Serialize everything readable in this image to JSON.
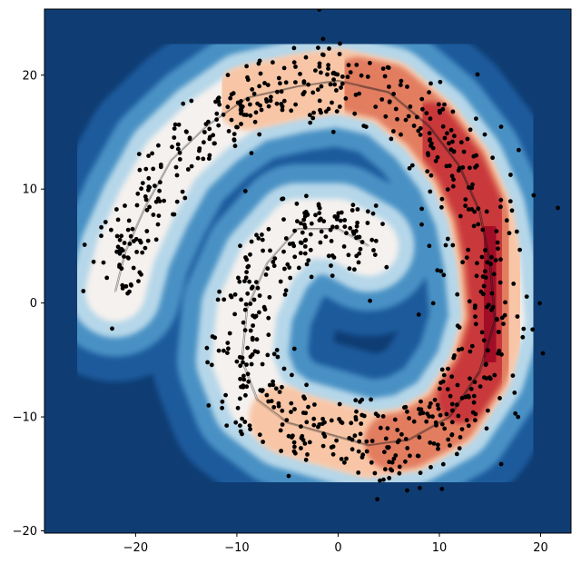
{
  "chart_data": {
    "type": "scatter",
    "subtype": "filled-contour-with-scatter-overlay",
    "title": "",
    "xlabel": "",
    "ylabel": "",
    "xlim": [
      -29,
      23
    ],
    "ylim": [
      -20.2,
      25.8
    ],
    "xticks": [
      -20,
      -10,
      0,
      10,
      20
    ],
    "yticks": [
      -20,
      -10,
      0,
      10,
      20
    ],
    "grid": false,
    "legend": "none",
    "colormap": "RdBu_r",
    "colors": {
      "background": "#0f3d73",
      "level_1": "#1a5a9c",
      "level_2": "#4a91c4",
      "level_3": "#b6d7e9",
      "level_4": "#f5f1ee",
      "level_5": "#f8c6a6",
      "level_6": "#e27d61",
      "level_7": "#c9383b",
      "level_8": "#a10f27",
      "points": "#000000",
      "contour_lines": "#1c1c1c"
    },
    "spiral": {
      "description_of_density_path": "density peaks along a spiral arm",
      "centerline": [
        [
          3,
          5
        ],
        [
          0,
          6.5
        ],
        [
          -4,
          6.5
        ],
        [
          -7,
          3.5
        ],
        [
          -9,
          -0.5
        ],
        [
          -9.5,
          -5
        ],
        [
          -8,
          -8.5
        ],
        [
          -5,
          -10.5
        ],
        [
          -1,
          -11.5
        ],
        [
          3,
          -12.5
        ],
        [
          7,
          -12
        ],
        [
          11,
          -10
        ],
        [
          14,
          -6
        ],
        [
          15.5,
          -1.5
        ],
        [
          15,
          3.5
        ],
        [
          14,
          8
        ],
        [
          12,
          12
        ],
        [
          9,
          15.5
        ],
        [
          5,
          18.5
        ],
        [
          0,
          19.5
        ],
        [
          -4,
          19
        ],
        [
          -9,
          18
        ],
        [
          -13,
          15.5
        ],
        [
          -16.5,
          12.5
        ],
        [
          -19,
          8.5
        ],
        [
          -21,
          4.5
        ],
        [
          -22,
          1
        ]
      ],
      "intensity": [
        0.28,
        0.3,
        0.3,
        0.32,
        0.35,
        0.4,
        0.45,
        0.52,
        0.58,
        0.63,
        0.68,
        0.72,
        0.82,
        0.95,
        0.9,
        0.82,
        0.8,
        0.76,
        0.7,
        0.64,
        0.58,
        0.5,
        0.44,
        0.38,
        0.32,
        0.28,
        0.25
      ]
    },
    "scatter_points_count": 900
  }
}
